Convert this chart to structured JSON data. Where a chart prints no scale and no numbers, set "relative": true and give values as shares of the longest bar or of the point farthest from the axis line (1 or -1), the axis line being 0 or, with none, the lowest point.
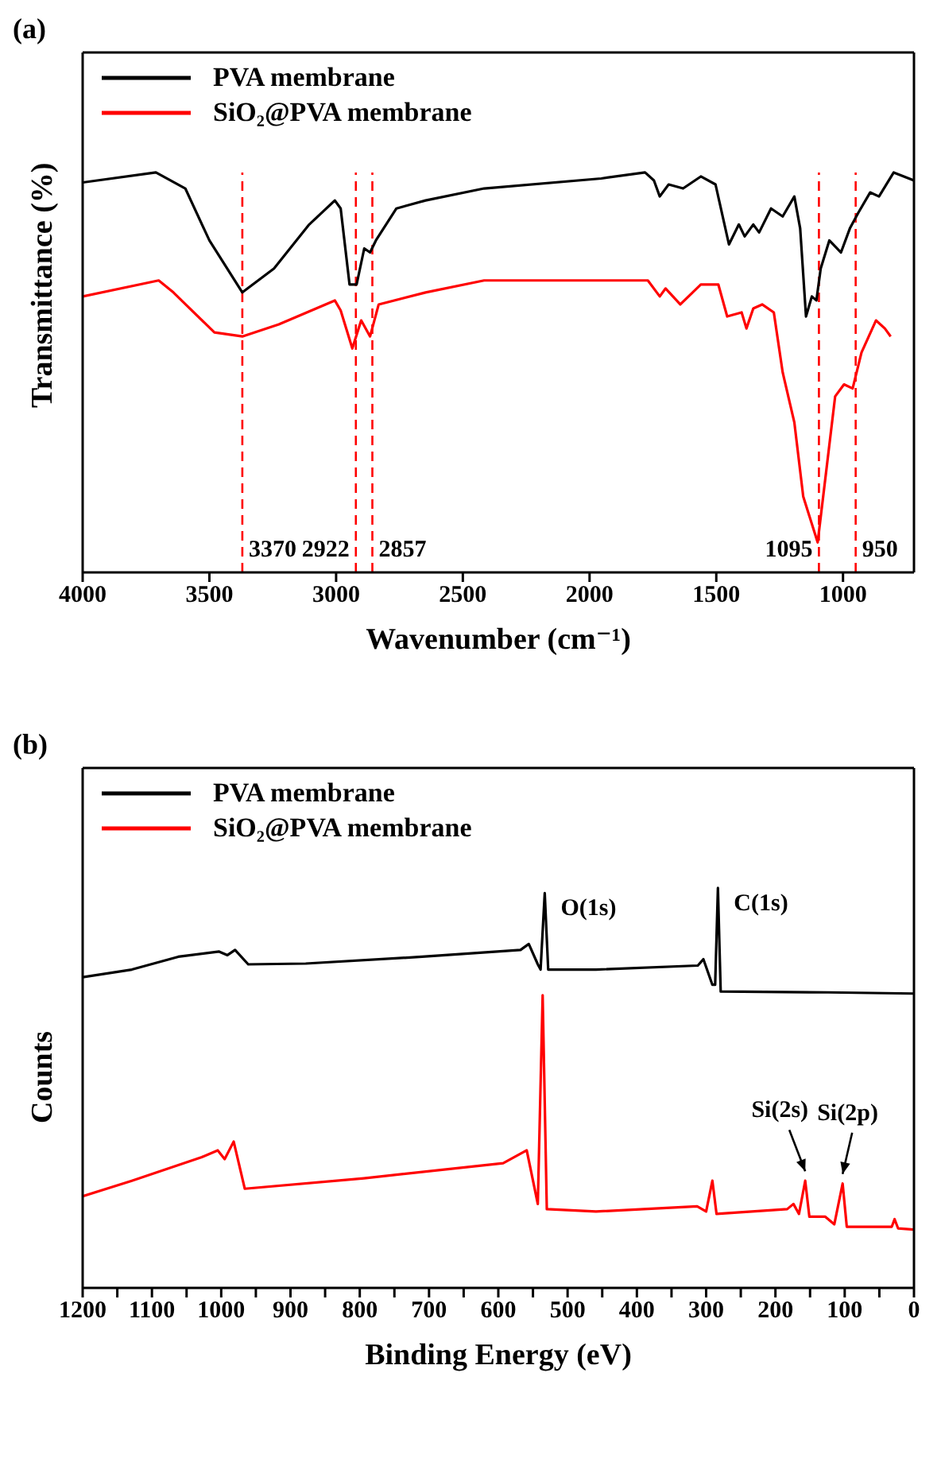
{
  "chart_data": [
    {
      "type": "line",
      "title": "(a)",
      "xlabel": "Wavenumber (cm⁻¹)",
      "ylabel": "Transmittance (%)",
      "relative": true,
      "tick_labels": "x",
      "legend": "top left",
      "xlim": [
        4000,
        720
      ],
      "xticks": [
        4000,
        3500,
        3000,
        2500,
        2000,
        1500,
        1000
      ],
      "series": [
        {
          "name": "PVA membrane",
          "color": "#000000",
          "x": [
            4000,
            3711,
            3595,
            3500,
            3370,
            3245,
            3106,
            3005,
            2982,
            2947,
            2919,
            2889,
            2866,
            2843,
            2762,
            2647,
            2416,
            1954,
            1781,
            1746,
            1723,
            1688,
            1631,
            1561,
            1503,
            1450,
            1411,
            1388,
            1354,
            1331,
            1284,
            1238,
            1192,
            1169,
            1146,
            1123,
            1105,
            1088,
            1054,
            1008,
            973,
            939,
            893,
            858,
            800,
            720
          ],
          "values": [
            0.975,
            1.0,
            0.96,
            0.83,
            0.7,
            0.76,
            0.87,
            0.93,
            0.91,
            0.72,
            0.72,
            0.81,
            0.8,
            0.83,
            0.91,
            0.93,
            0.96,
            0.985,
            1.0,
            0.98,
            0.94,
            0.97,
            0.96,
            0.99,
            0.97,
            0.82,
            0.87,
            0.84,
            0.87,
            0.85,
            0.91,
            0.89,
            0.94,
            0.86,
            0.64,
            0.69,
            0.68,
            0.76,
            0.83,
            0.8,
            0.86,
            0.9,
            0.95,
            0.94,
            1.0,
            0.98
          ]
        },
        {
          "name": "SiO₂@PVA membrane",
          "color": "#ff0000",
          "x": [
            4000,
            3700,
            3642,
            3480,
            3370,
            3226,
            3005,
            2982,
            2936,
            2901,
            2866,
            2832,
            2647,
            2416,
            1954,
            1770,
            1723,
            1700,
            1642,
            1561,
            1492,
            1457,
            1400,
            1381,
            1354,
            1319,
            1273,
            1238,
            1192,
            1157,
            1100,
            1065,
            1031,
            996,
            962,
            927,
            870,
            835,
            812
          ],
          "values": [
            0.69,
            0.73,
            0.7,
            0.6,
            0.59,
            0.62,
            0.68,
            0.655,
            0.56,
            0.63,
            0.59,
            0.67,
            0.7,
            0.73,
            0.73,
            0.73,
            0.69,
            0.71,
            0.67,
            0.72,
            0.72,
            0.64,
            0.65,
            0.61,
            0.66,
            0.67,
            0.65,
            0.5,
            0.375,
            0.19,
            0.075,
            0.26,
            0.44,
            0.47,
            0.46,
            0.55,
            0.63,
            0.61,
            0.59
          ]
        }
      ],
      "ref_lines": [
        {
          "axis": "x",
          "value": 3370,
          "label": "3370",
          "color": "#ff0000",
          "line_style": "dashed"
        },
        {
          "axis": "x",
          "value": 2922,
          "label": "2922",
          "color": "#ff0000",
          "line_style": "dashed"
        },
        {
          "axis": "x",
          "value": 2857,
          "label": "2857",
          "color": "#ff0000",
          "line_style": "dashed"
        },
        {
          "axis": "x",
          "value": 1095,
          "label": "1095",
          "color": "#ff0000",
          "line_style": "dashed"
        },
        {
          "axis": "x",
          "value": 950,
          "label": "950",
          "color": "#ff0000",
          "line_style": "dashed"
        }
      ]
    },
    {
      "type": "line",
      "title": "(b)",
      "xlabel": "Binding Energy (eV)",
      "ylabel": "Counts",
      "relative": true,
      "tick_labels": "x",
      "legend": "top left",
      "xlim": [
        1200,
        0
      ],
      "xticks": [
        1200,
        {
          "value": 1150,
          "label": null
        },
        1100,
        {
          "value": 1050,
          "label": null
        },
        1000,
        {
          "value": 950,
          "label": null
        },
        900,
        {
          "value": 850,
          "label": null
        },
        800,
        {
          "value": 750,
          "label": null
        },
        700,
        {
          "value": 650,
          "label": null
        },
        600,
        {
          "value": 550,
          "label": null
        },
        500,
        {
          "value": 450,
          "label": null
        },
        400,
        {
          "value": 350,
          "label": null
        },
        300,
        {
          "value": 250,
          "label": null
        },
        200,
        {
          "value": 150,
          "label": null
        },
        100,
        {
          "value": 50,
          "label": null
        },
        0
      ],
      "series": [
        {
          "name": "PVA membrane",
          "color": "#000000",
          "x": [
            1200,
            1129,
            1062,
            1003,
            991,
            980,
            961,
            878,
            710,
            568,
            556,
            543,
            539,
            533,
            528,
            459,
            312,
            304,
            291,
            287,
            283,
            279,
            124,
            0
          ],
          "values": [
            0.777,
            0.796,
            0.828,
            0.841,
            0.832,
            0.845,
            0.809,
            0.811,
            0.828,
            0.845,
            0.86,
            0.809,
            0.796,
            0.987,
            0.796,
            0.796,
            0.806,
            0.822,
            0.758,
            0.758,
            1.0,
            0.741,
            0.739,
            0.736
          ]
        },
        {
          "name": "SiO₂@PVA membrane",
          "color": "#ff0000",
          "x": [
            1200,
            1129,
            1028,
            1005,
            995,
            982,
            966,
            794,
            593,
            559,
            543,
            536,
            530,
            459,
            313,
            300,
            291,
            285,
            183,
            174,
            166,
            157,
            151,
            128,
            115,
            103,
            97,
            32,
            28,
            23,
            0
          ],
          "values": [
            0.229,
            0.268,
            0.327,
            0.344,
            0.322,
            0.366,
            0.248,
            0.274,
            0.312,
            0.344,
            0.21,
            0.732,
            0.197,
            0.191,
            0.204,
            0.191,
            0.268,
            0.185,
            0.197,
            0.21,
            0.185,
            0.268,
            0.178,
            0.178,
            0.159,
            0.261,
            0.153,
            0.153,
            0.172,
            0.149,
            0.146
          ]
        }
      ],
      "annotations": [
        {
          "text": "O(1s)",
          "x": 533,
          "y": 0.987
        },
        {
          "text": "C(1s)",
          "x": 283,
          "y": 1.0
        },
        {
          "text": "Si(2s)",
          "x": 157,
          "y": 0.268
        },
        {
          "text": "Si(2p)",
          "x": 103,
          "y": 0.261
        }
      ]
    }
  ]
}
